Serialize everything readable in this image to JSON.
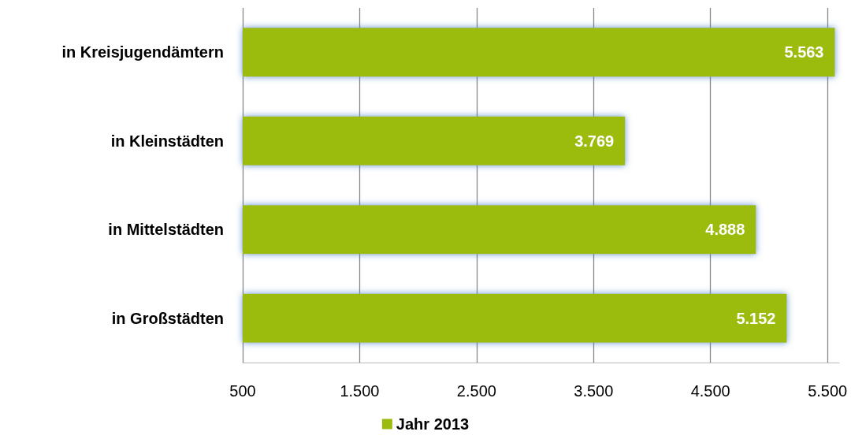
{
  "chart_data": {
    "type": "bar",
    "orientation": "horizontal",
    "categories": [
      "in Kreisjugendämtern",
      "in Kleinstädten",
      "in Mittelstädten",
      "in Großstädten"
    ],
    "series": [
      {
        "name": "Jahr 2013",
        "color": "#9bbb0e",
        "values": [
          5563,
          3769,
          4888,
          5152
        ],
        "value_labels": [
          "5.563",
          "3.769",
          "4.888",
          "5.152"
        ]
      }
    ],
    "xlim": [
      500,
      5600
    ],
    "xticks": [
      500,
      {
        "value": 1500,
        "label": "1.500"
      },
      {
        "value": 2500,
        "label": "2.500"
      },
      {
        "value": 3500,
        "label": "3.500"
      },
      {
        "value": 4500,
        "label": "4.500"
      },
      {
        "value": 5500,
        "label": "5.500"
      }
    ],
    "grid": "x",
    "legend": "bottom"
  }
}
